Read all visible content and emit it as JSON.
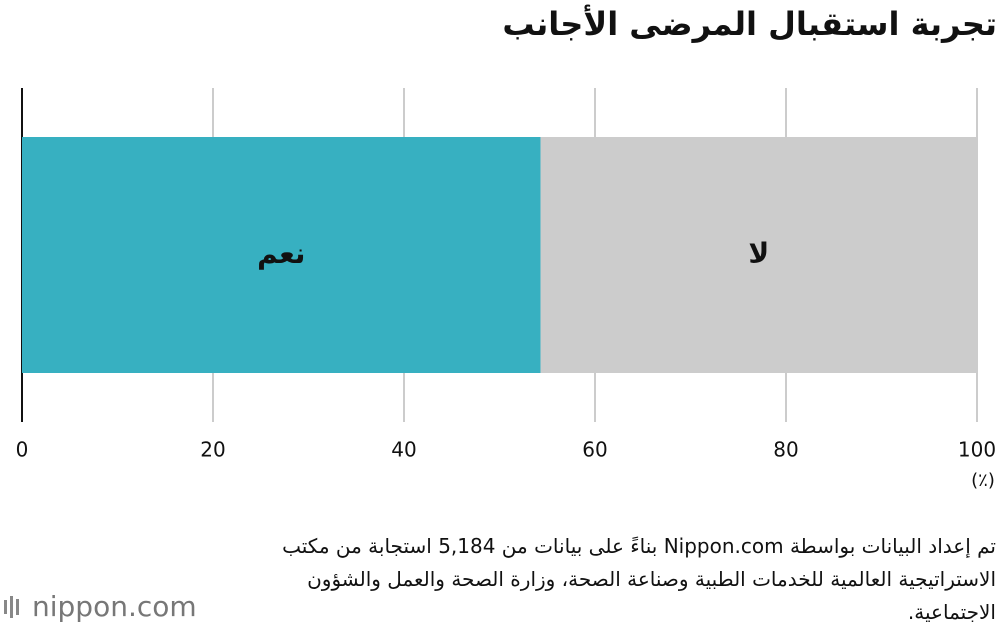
{
  "chart_data": {
    "type": "stacked-bar-horizontal",
    "title": "تجربة استقبال المرضى الأجانب",
    "series": [
      {
        "name": "نعم",
        "color": "#37b0c1",
        "values": [
          54.3
        ]
      },
      {
        "name": "لا",
        "color": "#cccccc",
        "values": [
          45.7
        ]
      }
    ],
    "xlim": [
      0,
      100
    ],
    "xticks": [
      0,
      20,
      40,
      60,
      80,
      100
    ],
    "grid": true,
    "xlabel": "(٪)",
    "source": "تم إعداد البيانات بواسطة Nippon.com بناءً على بيانات من 5,184 استجابة من مكتب الاستراتيجية العالمية للخدمات الطبية وصناعة الصحة، وزارة الصحة والعمل والشؤون الاجتماعية.",
    "logo": "nippon.com"
  }
}
